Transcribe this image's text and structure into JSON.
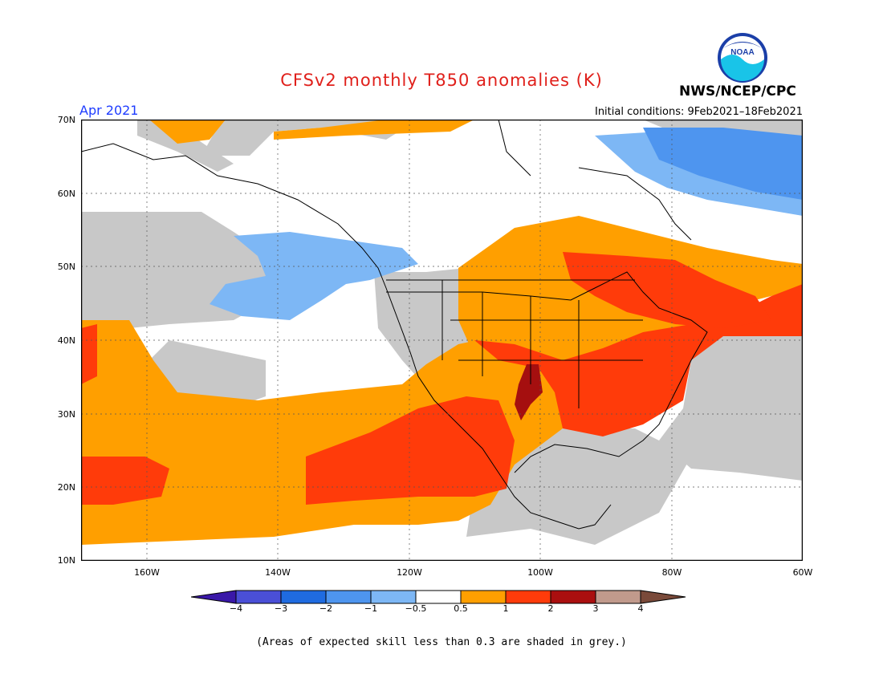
{
  "title": "CFSv2 monthly T850 anomalies (K)",
  "period": "Apr 2021",
  "initial_conditions": "Initial conditions: 9Feb2021–18Feb2021",
  "agency": "NWS/NCEP/CPC",
  "logo_text": "NOAA",
  "note": "(Areas of expected skill less than 0.3 are shaded in grey.)",
  "lat_labels": [
    "70N",
    "60N",
    "50N",
    "40N",
    "30N",
    "20N",
    "10N"
  ],
  "lon_labels": [
    "160W",
    "140W",
    "120W",
    "100W",
    "80W",
    "60W"
  ],
  "colorbar": {
    "labels": [
      "−4",
      "−3",
      "−2",
      "−1",
      "−0.5",
      "0.5",
      "1",
      "2",
      "3",
      "4"
    ],
    "colors": [
      "#3a18a8",
      "#4a4fd6",
      "#1f6be0",
      "#4e95ef",
      "#7db7f5",
      "#ffffff",
      "#ff9f00",
      "#ff3b0a",
      "#aa0f0f",
      "#c19a8c",
      "#7a4a3a"
    ]
  },
  "colors": {
    "grey": "#c8c8c8",
    "orange": "#ff9f00",
    "red": "#ff3b0a",
    "darkred": "#a50f0f",
    "lightblue": "#7db7f5",
    "blue": "#4e95ef",
    "title": "#e0201b",
    "period": "#1e3cff"
  }
}
